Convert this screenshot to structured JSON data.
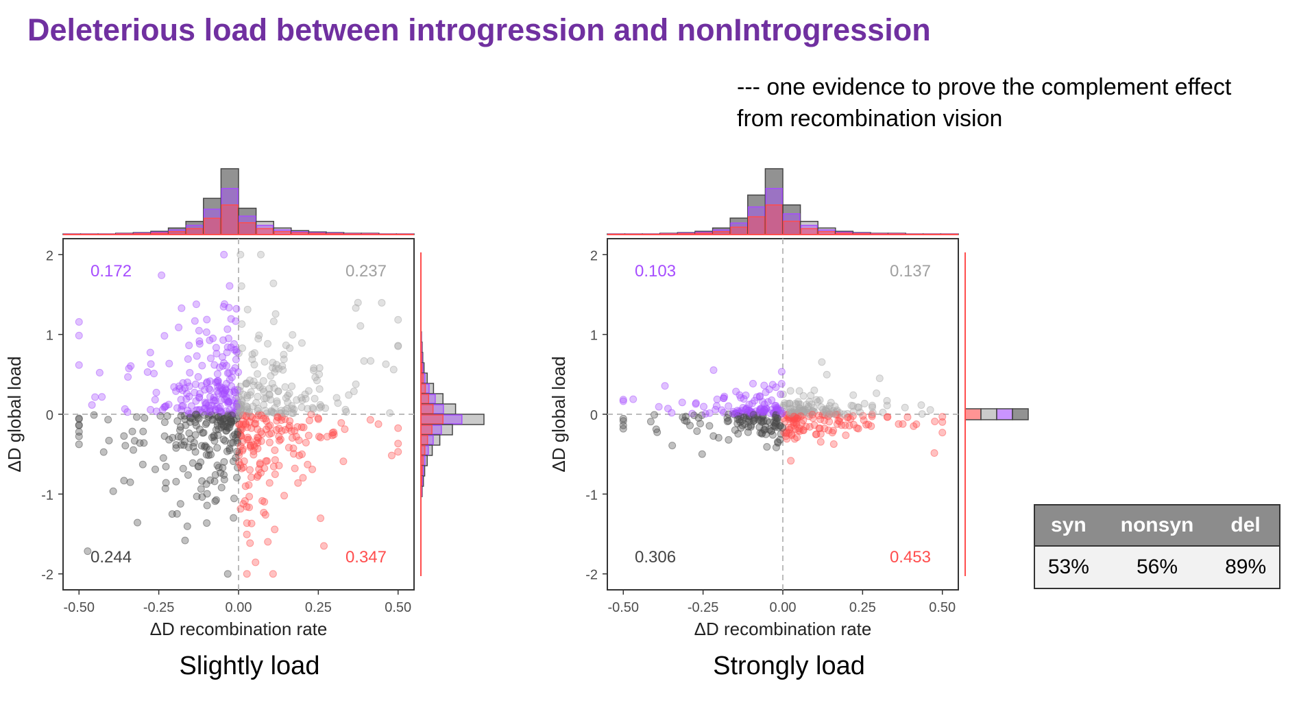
{
  "title": "Deleterious load between introgression and nonIntrogression",
  "subtitle": {
    "line1": "--- one evidence to prove the complement effect",
    "line2": "from recombination vision"
  },
  "colors": {
    "title": "#7030a0",
    "purple": "#a64dff",
    "lightgray": "#a8a8a8",
    "darkgray": "#4a4a4a",
    "red": "#ff4d4d"
  },
  "chart_data": [
    {
      "type": "scatter",
      "caption": "Slightly load",
      "xlabel": "ΔD recombination rate",
      "ylabel": "ΔD global load",
      "xlim": [
        -0.55,
        0.55
      ],
      "ylim": [
        -2.2,
        2.2
      ],
      "xticks": [
        "-0.50",
        "-0.25",
        "0.00",
        "0.25",
        "0.50"
      ],
      "yticks": [
        "2",
        "1",
        "0",
        "-1",
        "-2"
      ],
      "quadrant_labels": [
        {
          "quadrant": "top-left",
          "text": "0.172",
          "color": "#a64dff"
        },
        {
          "quadrant": "top-right",
          "text": "0.237",
          "color": "#a0a0a0"
        },
        {
          "quadrant": "bottom-left",
          "text": "0.244",
          "color": "#444444"
        },
        {
          "quadrant": "bottom-right",
          "text": "0.347",
          "color": "#ff4d4d"
        }
      ],
      "spread": {
        "x": 0.13,
        "y": 0.45,
        "count": 700
      },
      "top_hist_heights": [
        0.01,
        0.01,
        0.01,
        0.02,
        0.03,
        0.05,
        0.1,
        0.2,
        0.55,
        1.0,
        0.4,
        0.2,
        0.1,
        0.06,
        0.04,
        0.03,
        0.02,
        0.02,
        0.01,
        0.01
      ],
      "right_hist_heights": [
        0.01,
        0.02,
        0.03,
        0.05,
        0.1,
        0.2,
        0.35,
        0.55,
        1.0,
        0.5,
        0.3,
        0.18,
        0.1,
        0.06,
        0.04,
        0.02
      ]
    },
    {
      "type": "scatter",
      "caption": "Strongly load",
      "xlabel": "ΔD recombination rate",
      "ylabel": "ΔD global load",
      "xlim": [
        -0.55,
        0.55
      ],
      "ylim": [
        -2.2,
        2.2
      ],
      "xticks": [
        "-0.50",
        "-0.25",
        "0.00",
        "0.25",
        "0.50"
      ],
      "yticks": [
        "2",
        "1",
        "0",
        "-1",
        "-2"
      ],
      "quadrant_labels": [
        {
          "quadrant": "top-left",
          "text": "0.103",
          "color": "#a64dff"
        },
        {
          "quadrant": "top-right",
          "text": "0.137",
          "color": "#a0a0a0"
        },
        {
          "quadrant": "bottom-left",
          "text": "0.306",
          "color": "#444444"
        },
        {
          "quadrant": "bottom-right",
          "text": "0.453",
          "color": "#ff4d4d"
        }
      ],
      "spread": {
        "x": 0.13,
        "y": 0.12,
        "count": 420
      },
      "top_hist_heights": [
        0.01,
        0.01,
        0.01,
        0.02,
        0.03,
        0.05,
        0.1,
        0.25,
        0.6,
        1.0,
        0.45,
        0.2,
        0.1,
        0.05,
        0.03,
        0.02,
        0.02,
        0.01,
        0.01,
        0.01
      ],
      "right_hist_heights": [
        1.0
      ]
    }
  ],
  "table": {
    "headers": [
      "syn",
      "nonsyn",
      "del"
    ],
    "values": [
      "53%",
      "56%",
      "89%"
    ]
  }
}
